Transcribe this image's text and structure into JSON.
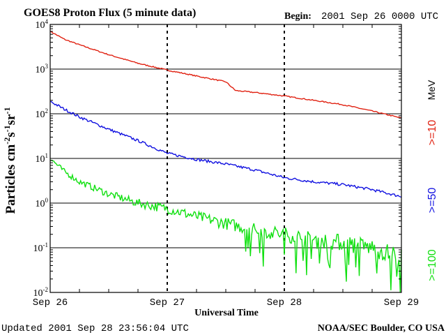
{
  "header": {
    "title": "GOES8 Proton Flux (5 minute data)",
    "begin_label": "Begin:",
    "begin_value": "2001 Sep 26 0000 UTC"
  },
  "footer": {
    "updated": "Updated 2001 Sep 28 23:56:04 UTC",
    "credit": "NOAA/SEC Boulder, CO USA"
  },
  "chart_data": {
    "type": "line",
    "title": "GOES8 Proton Flux (5 minute data)",
    "xlabel": "Universal Time",
    "ylabel": "Particles cm-2s-1sr-1",
    "ylabel_parts": {
      "base": "Particles cm",
      "e1": "-2",
      "m1": "s",
      "e2": "-1",
      "m2": "sr",
      "e3": "-1"
    },
    "y_scale": "log",
    "ylim": [
      0.01,
      10000
    ],
    "xlim": [
      "2001-09-26T00:00",
      "2001-09-29T00:00"
    ],
    "x_ticks": [
      "Sep 26",
      "Sep 27",
      "Sep 28",
      "Sep 29"
    ],
    "y_ticks": [
      {
        "base": "10",
        "exp": "-2",
        "value": 0.01
      },
      {
        "base": "10",
        "exp": "-1",
        "value": 0.1
      },
      {
        "base": "10",
        "exp": "0",
        "value": 1
      },
      {
        "base": "10",
        "exp": "1",
        "value": 10
      },
      {
        "base": "10",
        "exp": "2",
        "value": 100
      },
      {
        "base": "10",
        "exp": "3",
        "value": 1000
      },
      {
        "base": "10",
        "exp": "4",
        "value": 10000
      }
    ],
    "grid": "horizontal lines at decades, dashed vertical lines at day boundaries",
    "legend_unit": "MeV",
    "series": [
      {
        "name": ">=10",
        "color": "#e02010",
        "x": [
          "2001-09-26T00:00",
          "2001-09-26T03:00",
          "2001-09-26T06:00",
          "2001-09-26T12:00",
          "2001-09-26T18:00",
          "2001-09-27T00:00",
          "2001-09-27T06:00",
          "2001-09-27T12:00",
          "2001-09-27T14:00",
          "2001-09-27T18:00",
          "2001-09-28T00:00",
          "2001-09-28T06:00",
          "2001-09-28T12:00",
          "2001-09-28T18:00",
          "2001-09-29T00:00"
        ],
        "values": [
          7000,
          4600,
          3500,
          2100,
          1350,
          950,
          700,
          520,
          330,
          300,
          250,
          200,
          160,
          115,
          80
        ]
      },
      {
        "name": ">=50",
        "color": "#1010e0",
        "x": [
          "2001-09-26T00:00",
          "2001-09-26T03:00",
          "2001-09-26T06:00",
          "2001-09-26T12:00",
          "2001-09-26T18:00",
          "2001-09-27T00:00",
          "2001-09-27T06:00",
          "2001-09-27T12:00",
          "2001-09-27T18:00",
          "2001-09-28T00:00",
          "2001-09-28T06:00",
          "2001-09-28T12:00",
          "2001-09-28T18:00",
          "2001-09-29T00:00"
        ],
        "values": [
          190,
          125,
          85,
          45,
          25,
          13,
          9.5,
          7.5,
          5.5,
          3.7,
          3.0,
          2.6,
          2.0,
          1.4
        ]
      },
      {
        "name": ">=100",
        "color": "#10e010",
        "x": [
          "2001-09-26T00:00",
          "2001-09-26T03:00",
          "2001-09-26T06:00",
          "2001-09-26T12:00",
          "2001-09-26T18:00",
          "2001-09-27T00:00",
          "2001-09-27T06:00",
          "2001-09-27T12:00",
          "2001-09-27T18:00",
          "2001-09-28T00:00",
          "2001-09-28T06:00",
          "2001-09-28T12:00",
          "2001-09-28T18:00",
          "2001-09-29T00:00"
        ],
        "values": [
          10,
          5,
          3,
          1.6,
          1.0,
          0.75,
          0.5,
          0.35,
          0.25,
          0.2,
          0.15,
          0.13,
          0.1,
          0.06
        ]
      }
    ]
  }
}
